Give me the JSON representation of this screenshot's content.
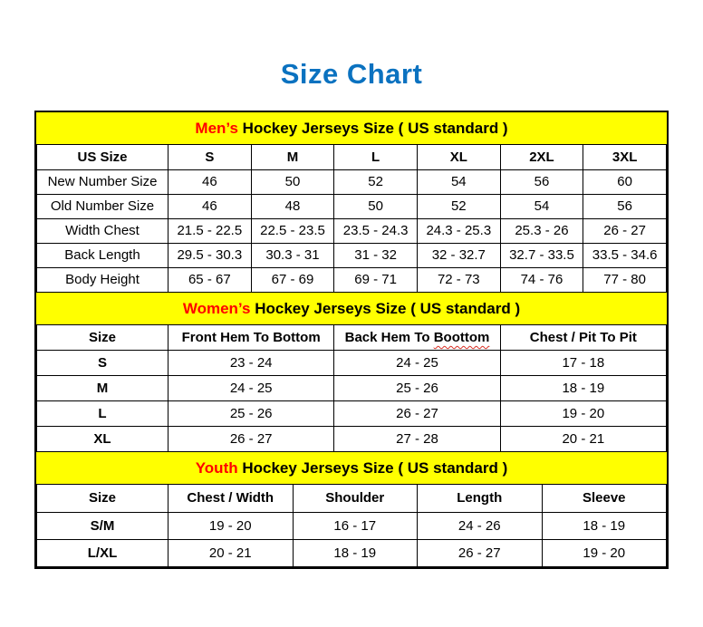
{
  "page": {
    "title": "Size Chart"
  },
  "colors": {
    "title_blue": "#0b72c0",
    "band_bg": "#ffff00",
    "accent_red": "#ff0000",
    "border_black": "#000000",
    "squiggle_red": "#d93025",
    "text_black": "#000000",
    "page_bg": "#ffffff"
  },
  "sections": {
    "mens": {
      "title_accent": "Men’s",
      "title_rest": " Hockey Jerseys Size ( US standard )",
      "col_headers": [
        "US Size",
        "S",
        "M",
        "L",
        "XL",
        "2XL",
        "3XL"
      ],
      "rows": [
        [
          "New Number Size",
          "46",
          "50",
          "52",
          "54",
          "56",
          "60"
        ],
        [
          "Old Number Size",
          "46",
          "48",
          "50",
          "52",
          "54",
          "56"
        ],
        [
          "Width Chest",
          "21.5 - 22.5",
          "22.5 - 23.5",
          "23.5 - 24.3",
          "24.3 - 25.3",
          "25.3 - 26",
          "26 - 27"
        ],
        [
          "Back Length",
          "29.5 - 30.3",
          "30.3 - 31",
          "31 - 32",
          "32 - 32.7",
          "32.7 - 33.5",
          "33.5 - 34.6"
        ],
        [
          "Body Height",
          "65 - 67",
          "67 - 69",
          "69 - 71",
          "72 - 73",
          "74 - 76",
          "77 - 80"
        ]
      ]
    },
    "womens": {
      "title_accent": "Women’s",
      "title_rest": " Hockey Jerseys Size ( US standard )",
      "col_headers": [
        "Size",
        "Front Hem To Bottom",
        "Back Hem To Boottom",
        "Chest / Pit To Pit"
      ],
      "back_hem_prefix": "Back Hem To ",
      "back_hem_misspelled": "Boottom",
      "rows": [
        [
          "S",
          "23 - 24",
          "24 - 25",
          "17 - 18"
        ],
        [
          "M",
          "24 - 25",
          "25 - 26",
          "18 - 19"
        ],
        [
          "L",
          "25 - 26",
          "26 - 27",
          "19 - 20"
        ],
        [
          "XL",
          "26 - 27",
          "27 - 28",
          "20 - 21"
        ]
      ]
    },
    "youth": {
      "title_accent": "Youth",
      "title_rest": " Hockey Jerseys Size ( US standard )",
      "col_headers": [
        "Size",
        "Chest / Width",
        "Shoulder",
        "Length",
        "Sleeve"
      ],
      "rows": [
        [
          "S/M",
          "19 - 20",
          "16 - 17",
          "24 - 26",
          "18 - 19"
        ],
        [
          "L/XL",
          "20 - 21",
          "18 - 19",
          "26 - 27",
          "19 - 20"
        ]
      ]
    }
  }
}
